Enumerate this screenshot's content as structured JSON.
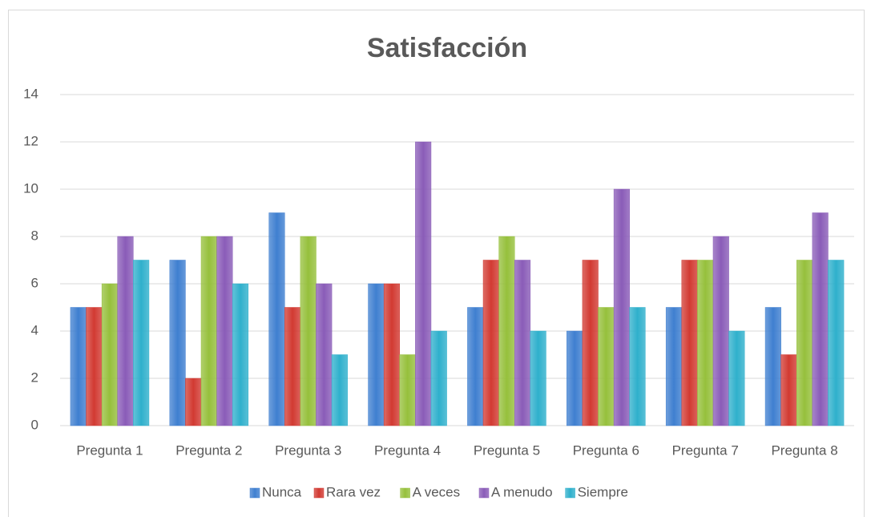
{
  "chart_data": {
    "type": "bar",
    "title": "Satisfacción",
    "categories": [
      "Pregunta 1",
      "Pregunta 2",
      "Pregunta 3",
      "Pregunta 4",
      "Pregunta 5",
      "Pregunta 6",
      "Pregunta 7",
      "Pregunta 8"
    ],
    "series": [
      {
        "name": "Nunca",
        "color": "#3f7fd0",
        "values": [
          5,
          7,
          9,
          6,
          5,
          4,
          5,
          5
        ]
      },
      {
        "name": "Rara vez",
        "color": "#d23a32",
        "values": [
          5,
          2,
          5,
          6,
          7,
          7,
          7,
          3
        ]
      },
      {
        "name": "A veces",
        "color": "#96c03c",
        "values": [
          6,
          8,
          8,
          3,
          8,
          5,
          7,
          7
        ]
      },
      {
        "name": "A menudo",
        "color": "#8a5cb8",
        "values": [
          8,
          8,
          6,
          12,
          7,
          10,
          8,
          9
        ]
      },
      {
        "name": "Siempre",
        "color": "#2fb0cc",
        "values": [
          7,
          6,
          3,
          4,
          4,
          5,
          4,
          7
        ]
      }
    ],
    "ylim": [
      0,
      14
    ],
    "yticks": [
      0,
      2,
      4,
      6,
      8,
      10,
      12,
      14
    ],
    "grid": true,
    "legend": "bottom"
  }
}
